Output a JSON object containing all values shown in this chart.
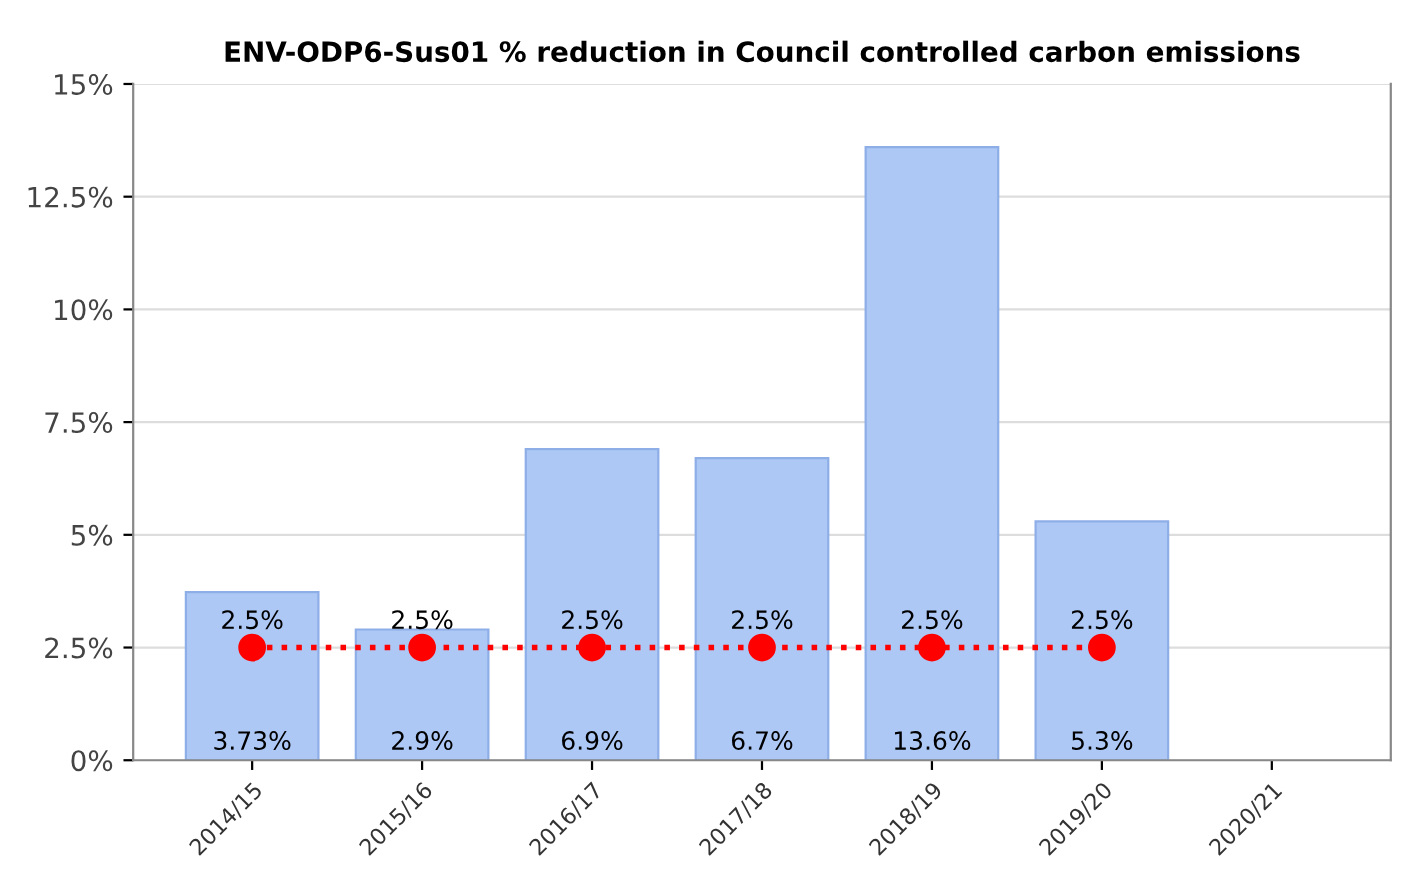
{
  "chart_data": {
    "type": "bar",
    "title": "ENV-ODP6-Sus01 % reduction in Council controlled carbon emissions",
    "categories": [
      "2014/15",
      "2015/16",
      "2016/17",
      "2017/18",
      "2018/19",
      "2019/20",
      "2020/21"
    ],
    "series": [
      {
        "color": "#adc8f5",
        "values": [
          3.73,
          2.9,
          6.9,
          6.7,
          13.6,
          5.3,
          null
        ],
        "value_labels": [
          "3.73%",
          "2.9%",
          "6.9%",
          "6.7%",
          "13.6%",
          "5.3%",
          null
        ]
      },
      {
        "type": "line",
        "color": "#ff0000",
        "marker": "circle",
        "line_style": "dotted",
        "values": [
          2.5,
          2.5,
          2.5,
          2.5,
          2.5,
          2.5,
          null
        ],
        "value_labels": [
          "2.5%",
          "2.5%",
          "2.5%",
          "2.5%",
          "2.5%",
          "2.5%",
          null
        ]
      }
    ],
    "ylim": [
      0,
      15
    ],
    "yticks": [
      {
        "value": 0,
        "label": "0%"
      },
      {
        "value": 2.5,
        "label": "2.5%"
      },
      {
        "value": 5,
        "label": "5%"
      },
      {
        "value": 7.5,
        "label": "7.5%"
      },
      {
        "value": 10,
        "label": "10%"
      },
      {
        "value": 12.5,
        "label": "12.5%"
      },
      {
        "value": 15,
        "label": "15%"
      }
    ],
    "grid": "y",
    "legend": false
  }
}
